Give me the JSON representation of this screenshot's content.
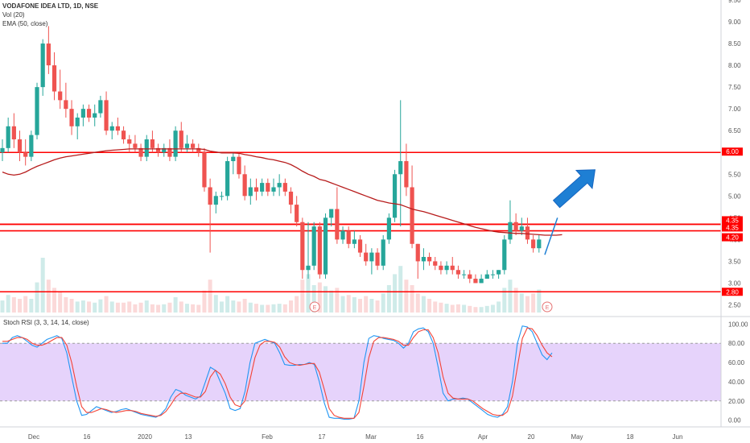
{
  "legend": {
    "symbol": "VODAFONE IDEA LTD, 1D, NSE",
    "vol": "Vol (20)",
    "ema": "EMA (50, close)"
  },
  "stoch_legend": "Stoch RSI (3, 3, 14, 14, close)",
  "earnings_marker": "E",
  "colors": {
    "up": "#26a69a",
    "down": "#ef5350",
    "ema": "#b71c1c",
    "hline": "#ff0000",
    "arrow": "#1e7fd4",
    "stoch_k": "#2196f3",
    "stoch_d": "#f44336",
    "stoch_band": "#e6d3fb"
  },
  "chart_data": [
    {
      "type": "candlestick",
      "title": "VODAFONE IDEA LTD, 1D, NSE",
      "ylim": [
        2.25,
        9.5
      ],
      "y_ticks": [
        "9.50",
        "9.00",
        "8.50",
        "8.00",
        "7.50",
        "7.00",
        "6.50",
        "6.00",
        "5.50",
        "5.00",
        "4.50",
        "4.00",
        "3.50",
        "3.00",
        "2.50"
      ],
      "x_ticks": [
        "Dec",
        "16",
        "2020",
        "13",
        "Feb",
        "17",
        "Mar",
        "16",
        "Apr",
        "20",
        "May",
        "18",
        "Jun"
      ],
      "candles": [
        [
          6.0,
          6.3,
          5.8,
          6.1
        ],
        [
          6.1,
          6.8,
          6.0,
          6.6
        ],
        [
          6.6,
          6.9,
          6.1,
          6.3
        ],
        [
          6.3,
          6.5,
          5.8,
          6.0
        ],
        [
          6.0,
          6.3,
          5.7,
          5.9
        ],
        [
          5.9,
          6.5,
          5.8,
          6.4
        ],
        [
          6.4,
          7.6,
          6.3,
          7.5
        ],
        [
          7.5,
          8.6,
          7.3,
          8.5
        ],
        [
          8.5,
          8.9,
          7.8,
          8.0
        ],
        [
          8.0,
          8.3,
          7.2,
          7.4
        ],
        [
          7.4,
          7.9,
          7.0,
          7.2
        ],
        [
          7.2,
          7.6,
          6.8,
          7.0
        ],
        [
          7.0,
          7.2,
          6.4,
          6.6
        ],
        [
          6.6,
          6.9,
          6.3,
          6.8
        ],
        [
          6.8,
          7.1,
          6.6,
          7.0
        ],
        [
          7.0,
          7.1,
          6.7,
          6.8
        ],
        [
          6.8,
          7.1,
          6.6,
          6.9
        ],
        [
          6.9,
          7.3,
          6.8,
          7.2
        ],
        [
          7.2,
          7.4,
          6.4,
          6.5
        ],
        [
          6.5,
          6.7,
          6.3,
          6.6
        ],
        [
          6.6,
          6.8,
          6.4,
          6.5
        ],
        [
          6.5,
          6.6,
          6.2,
          6.3
        ],
        [
          6.3,
          6.4,
          6.0,
          6.2
        ],
        [
          6.2,
          6.4,
          6.0,
          6.1
        ],
        [
          6.1,
          6.2,
          5.8,
          5.9
        ],
        [
          5.9,
          6.4,
          5.8,
          6.3
        ],
        [
          6.3,
          6.5,
          6.0,
          6.1
        ],
        [
          6.1,
          6.2,
          5.9,
          6.0
        ],
        [
          6.0,
          6.2,
          5.9,
          6.1
        ],
        [
          6.1,
          6.3,
          5.8,
          5.9
        ],
        [
          5.9,
          6.6,
          5.8,
          6.5
        ],
        [
          6.5,
          6.7,
          6.0,
          6.1
        ],
        [
          6.1,
          6.4,
          6.0,
          6.2
        ],
        [
          6.2,
          6.3,
          6.0,
          6.1
        ],
        [
          6.1,
          6.2,
          5.9,
          6.0
        ],
        [
          6.0,
          6.1,
          5.1,
          5.2
        ],
        [
          5.2,
          5.4,
          3.7,
          4.8
        ],
        [
          4.8,
          5.1,
          4.6,
          5.0
        ],
        [
          5.0,
          5.1,
          4.9,
          5.0
        ],
        [
          5.0,
          5.9,
          4.9,
          5.8
        ],
        [
          5.8,
          6.0,
          5.5,
          5.9
        ],
        [
          5.9,
          6.0,
          5.4,
          5.5
        ],
        [
          5.5,
          5.7,
          4.9,
          5.0
        ],
        [
          5.0,
          5.4,
          4.8,
          5.2
        ],
        [
          5.2,
          5.4,
          4.9,
          5.1
        ],
        [
          5.1,
          5.4,
          5.0,
          5.3
        ],
        [
          5.3,
          5.4,
          5.0,
          5.1
        ],
        [
          5.1,
          5.4,
          5.0,
          5.2
        ],
        [
          5.2,
          5.5,
          5.0,
          5.3
        ],
        [
          5.3,
          5.4,
          5.0,
          5.1
        ],
        [
          5.1,
          5.2,
          4.6,
          4.8
        ],
        [
          4.8,
          5.0,
          4.3,
          4.4
        ],
        [
          4.4,
          4.5,
          3.1,
          3.3
        ],
        [
          3.3,
          4.4,
          3.1,
          3.4
        ],
        [
          3.4,
          4.4,
          3.3,
          4.3
        ],
        [
          4.3,
          4.4,
          3.1,
          3.2
        ],
        [
          3.2,
          4.6,
          3.1,
          4.5
        ],
        [
          4.5,
          4.7,
          4.3,
          4.7
        ],
        [
          4.7,
          5.2,
          3.9,
          4.0
        ],
        [
          4.0,
          4.3,
          3.9,
          4.2
        ],
        [
          4.2,
          4.3,
          3.8,
          3.9
        ],
        [
          3.9,
          4.2,
          3.8,
          4.0
        ],
        [
          4.0,
          4.1,
          3.6,
          3.7
        ],
        [
          3.7,
          3.9,
          3.4,
          3.5
        ],
        [
          3.5,
          3.8,
          3.2,
          3.7
        ],
        [
          3.7,
          3.8,
          3.3,
          3.4
        ],
        [
          3.4,
          4.1,
          3.3,
          4.0
        ],
        [
          4.0,
          4.6,
          3.9,
          4.5
        ],
        [
          4.5,
          5.6,
          4.4,
          5.5
        ],
        [
          5.5,
          7.2,
          4.3,
          5.8
        ],
        [
          5.8,
          6.2,
          5.0,
          5.2
        ],
        [
          5.2,
          5.7,
          3.8,
          3.9
        ],
        [
          3.9,
          3.9,
          3.1,
          3.5
        ],
        [
          3.5,
          3.8,
          3.3,
          3.6
        ],
        [
          3.6,
          3.7,
          3.4,
          3.5
        ],
        [
          3.5,
          3.6,
          3.3,
          3.4
        ],
        [
          3.4,
          3.5,
          3.2,
          3.3
        ],
        [
          3.3,
          3.5,
          3.2,
          3.4
        ],
        [
          3.4,
          3.6,
          3.2,
          3.3
        ],
        [
          3.3,
          3.4,
          3.1,
          3.2
        ],
        [
          3.2,
          3.3,
          3.1,
          3.2
        ],
        [
          3.2,
          3.3,
          3.0,
          3.1
        ],
        [
          3.1,
          3.2,
          3.0,
          3.0
        ],
        [
          3.0,
          3.2,
          3.0,
          3.1
        ],
        [
          3.1,
          3.3,
          3.1,
          3.2
        ],
        [
          3.2,
          3.3,
          3.1,
          3.2
        ],
        [
          3.2,
          3.3,
          3.1,
          3.3
        ],
        [
          3.3,
          4.1,
          3.2,
          4.0
        ],
        [
          4.0,
          4.9,
          3.9,
          4.4
        ],
        [
          4.4,
          4.6,
          4.1,
          4.2
        ],
        [
          4.2,
          4.5,
          4.1,
          4.3
        ],
        [
          4.3,
          4.5,
          3.9,
          4.0
        ],
        [
          4.0,
          4.1,
          3.7,
          3.8
        ],
        [
          3.8,
          4.1,
          3.7,
          4.0
        ]
      ],
      "ema": [
        5.55,
        5.5,
        5.48,
        5.5,
        5.55,
        5.62,
        5.68,
        5.73,
        5.78,
        5.83,
        5.87,
        5.9,
        5.92,
        5.94,
        5.96,
        5.98,
        6.0,
        6.02,
        6.04,
        6.05,
        6.06,
        6.07,
        6.08,
        6.08,
        6.08,
        6.08,
        6.08,
        6.08,
        6.08,
        6.08,
        6.08,
        6.08,
        6.08,
        6.08,
        6.08,
        6.07,
        6.03,
        6.01,
        5.99,
        5.99,
        5.99,
        5.98,
        5.95,
        5.93,
        5.9,
        5.88,
        5.85,
        5.83,
        5.8,
        5.77,
        5.72,
        5.65,
        5.57,
        5.5,
        5.45,
        5.38,
        5.35,
        5.3,
        5.25,
        5.2,
        5.15,
        5.1,
        5.05,
        5.0,
        4.95,
        4.9,
        4.87,
        4.84,
        4.82,
        4.8,
        4.75,
        4.7,
        4.67,
        4.64,
        4.6,
        4.56,
        4.52,
        4.48,
        4.44,
        4.4,
        4.36,
        4.32,
        4.28,
        4.25,
        4.22,
        4.19,
        4.17,
        4.16,
        4.15,
        4.14,
        4.14,
        4.13,
        4.12,
        4.11,
        4.1,
        4.1,
        4.1,
        4.11
      ],
      "volume": [
        0.22,
        0.32,
        0.28,
        0.25,
        0.3,
        0.25,
        0.55,
        1.0,
        0.6,
        0.45,
        0.38,
        0.28,
        0.25,
        0.2,
        0.22,
        0.2,
        0.18,
        0.24,
        0.3,
        0.2,
        0.18,
        0.18,
        0.2,
        0.15,
        0.18,
        0.22,
        0.15,
        0.14,
        0.15,
        0.18,
        0.28,
        0.2,
        0.16,
        0.15,
        0.14,
        0.4,
        0.6,
        0.32,
        0.2,
        0.3,
        0.22,
        0.2,
        0.25,
        0.18,
        0.16,
        0.14,
        0.14,
        0.15,
        0.16,
        0.15,
        0.22,
        0.3,
        0.6,
        0.7,
        0.5,
        0.55,
        0.48,
        0.4,
        0.45,
        0.3,
        0.32,
        0.28,
        0.25,
        0.3,
        0.25,
        0.22,
        0.35,
        0.5,
        0.7,
        0.85,
        0.6,
        0.5,
        0.35,
        0.3,
        0.25,
        0.2,
        0.18,
        0.16,
        0.14,
        0.15,
        0.14,
        0.12,
        0.1,
        0.1,
        0.12,
        0.14,
        0.2,
        0.45,
        0.6,
        0.45,
        0.35,
        0.3,
        0.35,
        0.42
      ],
      "horizontal_levels": [
        6.0,
        4.35,
        4.35,
        4.2,
        2.8
      ],
      "level_labels": [
        "6.00",
        "4.35",
        "4.35",
        "4.20",
        "2.80"
      ]
    },
    {
      "type": "line",
      "title": "Stoch RSI (3, 3, 14, 14, close)",
      "ylim": [
        -7,
        107
      ],
      "y_ticks": [
        "100.00",
        "80.00",
        "60.00",
        "40.00",
        "20.00",
        "0.00"
      ],
      "band": [
        20,
        80
      ],
      "series": [
        {
          "values": [
            80,
            80,
            86,
            88,
            86,
            82,
            78,
            76,
            80,
            84,
            86,
            88,
            85,
            70,
            45,
            20,
            5,
            6,
            10,
            14,
            12,
            10,
            8,
            9,
            11,
            12,
            10,
            8,
            6,
            5,
            4,
            3,
            6,
            12,
            24,
            32,
            30,
            26,
            24,
            22,
            25,
            40,
            55,
            52,
            40,
            28,
            12,
            10,
            12,
            30,
            60,
            80,
            82,
            84,
            82,
            80,
            70,
            58,
            57,
            57,
            58,
            58,
            60,
            58,
            40,
            18,
            3,
            2,
            2,
            1,
            1,
            2,
            20,
            60,
            85,
            88,
            87,
            85,
            84,
            83,
            80,
            75,
            80,
            92,
            95,
            96,
            92,
            80,
            55,
            28,
            20,
            22,
            22,
            23,
            22,
            18,
            14,
            10,
            6,
            4,
            3,
            6,
            14,
            40,
            80,
            98,
            97,
            92,
            80,
            68,
            63,
            70
          ]
        },
        {
          "values": [
            82,
            82,
            84,
            86,
            86,
            84,
            80,
            78,
            78,
            80,
            83,
            86,
            86,
            78,
            60,
            35,
            14,
            8,
            8,
            10,
            12,
            11,
            9,
            8,
            9,
            10,
            10,
            9,
            7,
            6,
            5,
            4,
            5,
            9,
            16,
            24,
            28,
            28,
            26,
            24,
            24,
            30,
            45,
            52,
            48,
            38,
            24,
            16,
            14,
            20,
            42,
            65,
            78,
            82,
            82,
            81,
            76,
            66,
            60,
            58,
            57,
            58,
            59,
            59,
            50,
            32,
            12,
            5,
            3,
            2,
            2,
            2,
            8,
            35,
            65,
            82,
            86,
            86,
            85,
            84,
            82,
            78,
            78,
            86,
            92,
            94,
            94,
            86,
            70,
            45,
            28,
            23,
            22,
            22,
            22,
            20,
            16,
            12,
            9,
            6,
            5,
            5,
            9,
            25,
            55,
            85,
            96,
            95,
            88,
            78,
            70,
            66
          ]
        }
      ]
    }
  ]
}
